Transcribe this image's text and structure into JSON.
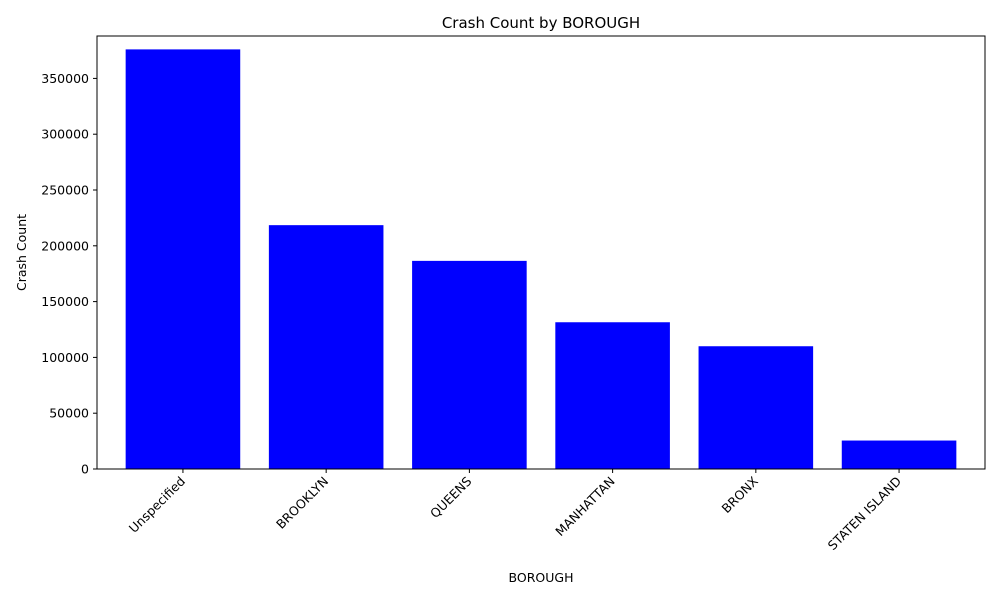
{
  "chart_data": {
    "type": "bar",
    "title": "Crash Count by BOROUGH",
    "xlabel": "BOROUGH",
    "ylabel": "Crash Count",
    "categories": [
      "Unspecified",
      "BROOKLYN",
      "QUEENS",
      "MANHATTAN",
      "BRONX",
      "STATEN ISLAND"
    ],
    "values": [
      376000,
      218500,
      186500,
      131500,
      110000,
      25500
    ],
    "ylim": [
      0,
      388000
    ],
    "yticks": [
      0,
      50000,
      100000,
      150000,
      200000,
      250000,
      300000,
      350000
    ],
    "bar_color": "#0000ff",
    "grid": false,
    "legend": "none"
  }
}
